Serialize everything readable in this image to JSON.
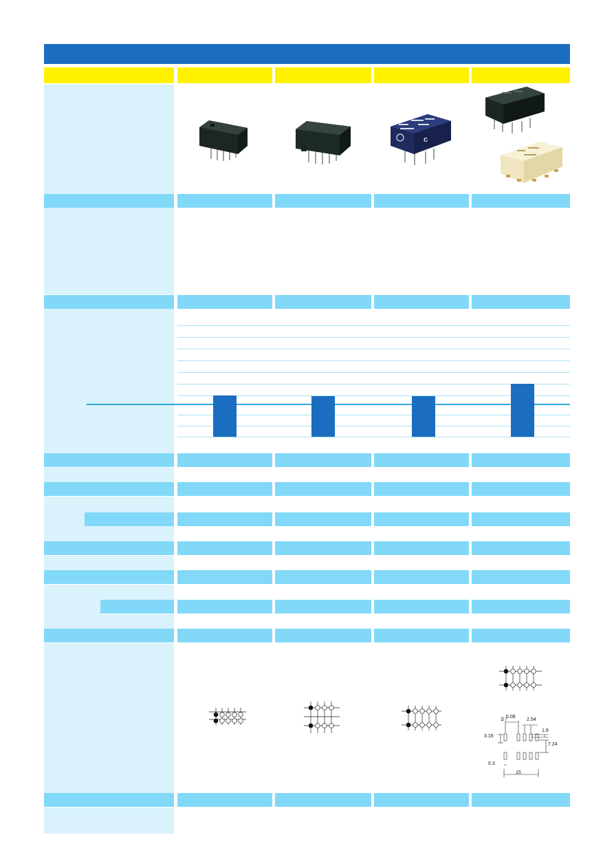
{
  "colors": {
    "title_bar": "#1a6dbf",
    "header_yellow": "#fff200",
    "section_blue": "#82d8f8",
    "label_pale": "#d9f2fb",
    "bar_fill": "#1a6dbf",
    "reference_line": "#2fa7dd"
  },
  "columns": [
    {
      "name": "column-1",
      "image": "relay-photo-dark-small",
      "bar_level": 0.55,
      "footprint": "pcb-layout-5x2-compact"
    },
    {
      "name": "column-2",
      "image": "relay-photo-dark-medium",
      "bar_level": 0.54,
      "footprint": "pcb-layout-4x3-grid"
    },
    {
      "name": "column-3",
      "image": "relay-photo-blue-marked",
      "bar_level": 0.54,
      "footprint": "pcb-layout-5x2"
    },
    {
      "name": "column-4",
      "image": "relay-photo-dark-and-cream",
      "bar_level": 0.72,
      "footprint": "pcb-layout-5x2-with-dimensions"
    }
  ],
  "dimensions": {
    "d1": "1",
    "d2": "5.08",
    "d3": "2.54",
    "d4": "1.6",
    "d5": "3.16",
    "d6": "7.24",
    "d7": "0.3",
    "d8": "15"
  }
}
